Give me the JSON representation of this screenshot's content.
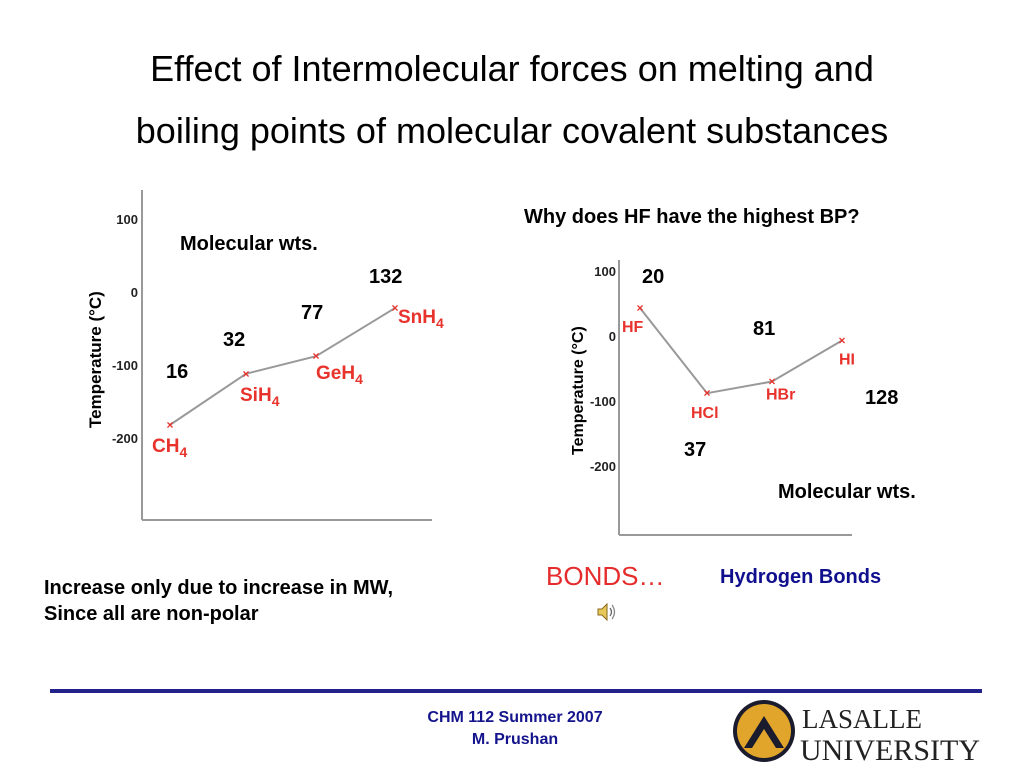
{
  "slide": {
    "title_line1": "Effect of Intermolecular forces on melting and",
    "title_line2": "boiling points of molecular covalent substances",
    "left_note_line1": "Increase only due to increase in MW,",
    "left_note_line2": "Since all are non-polar",
    "question": "Why does HF have the highest BP?",
    "bonds_label": "BONDS…",
    "hbonds_label": "Hydrogen Bonds",
    "footer_line1": "CHM 112 Summer 2007",
    "footer_line2": "M. Prushan",
    "logo_line1": "LASALLE",
    "logo_line2": "UNIVERSITY",
    "speaker_icon": "speaker-icon",
    "accent_blue": "#14148c",
    "accent_red": "#e52b2b"
  },
  "chart_data": [
    {
      "type": "line",
      "ylabel": "Temperature  (°C)",
      "yticks": [
        100,
        0,
        -100,
        -200
      ],
      "ylim": [
        -300,
        130
      ],
      "annotation_title": "Molecular wts.",
      "categories": [
        "CH4",
        "SiH4",
        "GeH4",
        "SnH4"
      ],
      "label_main": [
        "CH",
        "SiH",
        "GeH",
        "SnH"
      ],
      "label_sub": [
        "4",
        "4",
        "4",
        "4"
      ],
      "values": [
        -182,
        -112,
        -88,
        -22
      ],
      "molecular_weights": [
        "16",
        "32",
        "77",
        "132"
      ],
      "line_color": "#999999",
      "point_color": "#e8322c"
    },
    {
      "type": "line",
      "ylabel": "Temperature  (°C)",
      "yticks": [
        100,
        0,
        -100,
        -200
      ],
      "ylim": [
        -300,
        110
      ],
      "annotation_title": "Molecular wts.",
      "categories": [
        "HF",
        "HCl",
        "HBr",
        "HI"
      ],
      "values": [
        43,
        -88,
        -70,
        -7
      ],
      "molecular_weights": [
        "20",
        "37",
        "81",
        "128"
      ],
      "line_color": "#999999",
      "point_color": "#e8322c"
    }
  ]
}
